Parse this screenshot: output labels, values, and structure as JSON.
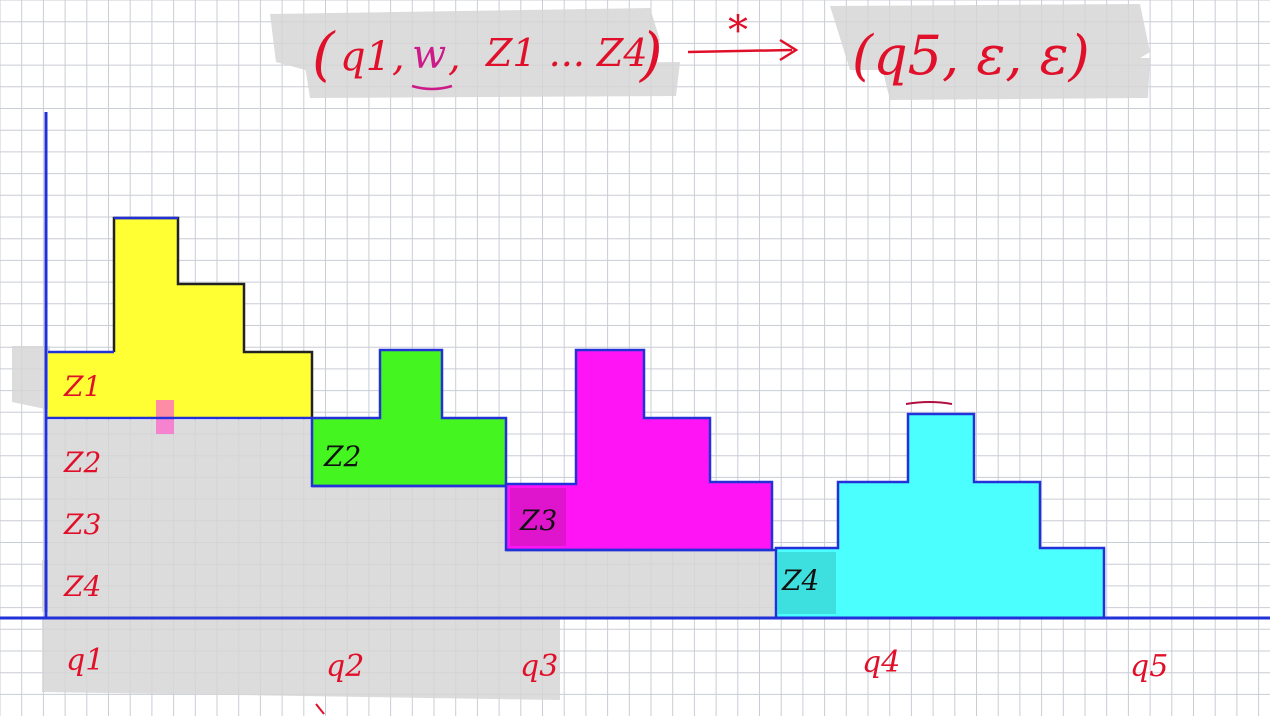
{
  "formula": {
    "left_open": "(",
    "state": "q1",
    "sep1": ",",
    "input": "w",
    "sep2": ",",
    "stack": "Z1 ... Z4",
    "left_close": ")",
    "relation_star": "*",
    "right": "(q5, ε, ε)"
  },
  "stack_labels": [
    "Z1",
    "Z2",
    "Z3",
    "Z4"
  ],
  "block_labels": {
    "yellow": "Z1",
    "green": "Z2",
    "magenta": "Z3",
    "cyan": "Z4"
  },
  "state_labels": [
    "q1",
    "q2",
    "q3",
    "q4",
    "q5"
  ],
  "colors": {
    "yellow": "#ffff33",
    "green": "#44f51f",
    "magenta": "#ff14f5",
    "cyan": "#4bffff",
    "axis": "#2231d8",
    "ink_red": "#e0102a",
    "ink_magenta": "#cc1a88",
    "grid": "#c9cdd6",
    "shade": "#d4d4d4"
  }
}
